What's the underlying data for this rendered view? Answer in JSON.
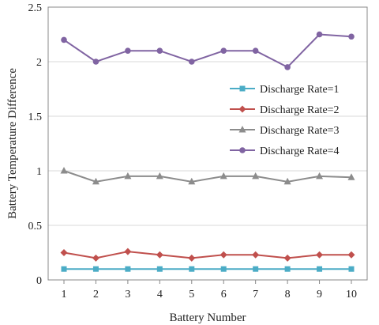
{
  "chart_data": {
    "type": "line",
    "title": "",
    "xlabel": "Battery Number",
    "ylabel": "Battery Temperature Difference",
    "x": [
      1,
      2,
      3,
      4,
      5,
      6,
      7,
      8,
      9,
      10
    ],
    "xticks": [
      "1",
      "2",
      "3",
      "4",
      "5",
      "6",
      "7",
      "8",
      "9",
      "10"
    ],
    "ylim": [
      0,
      2.5
    ],
    "yticks": [
      "0",
      "0.5",
      "1",
      "1.5",
      "2",
      "2.5"
    ],
    "ytick_values": [
      0,
      0.5,
      1,
      1.5,
      2,
      2.5
    ],
    "grid": true,
    "legend_position": "right",
    "series": [
      {
        "name": "Discharge Rate=1",
        "color": "#4bacc6",
        "marker": "square",
        "values": [
          0.1,
          0.1,
          0.1,
          0.1,
          0.1,
          0.1,
          0.1,
          0.1,
          0.1,
          0.1
        ]
      },
      {
        "name": "Discharge Rate=2",
        "color": "#c0504d",
        "marker": "diamond",
        "values": [
          0.25,
          0.2,
          0.26,
          0.23,
          0.2,
          0.23,
          0.23,
          0.2,
          0.23,
          0.23
        ]
      },
      {
        "name": "Discharge Rate=3",
        "color": "#8c8c8c",
        "marker": "triangle",
        "values": [
          1.0,
          0.9,
          0.95,
          0.95,
          0.9,
          0.95,
          0.95,
          0.9,
          0.95,
          0.94
        ]
      },
      {
        "name": "Discharge Rate=4",
        "color": "#8064a2",
        "marker": "circle",
        "values": [
          2.2,
          2.0,
          2.1,
          2.1,
          2.0,
          2.1,
          2.1,
          1.95,
          2.25,
          2.23
        ]
      }
    ]
  }
}
